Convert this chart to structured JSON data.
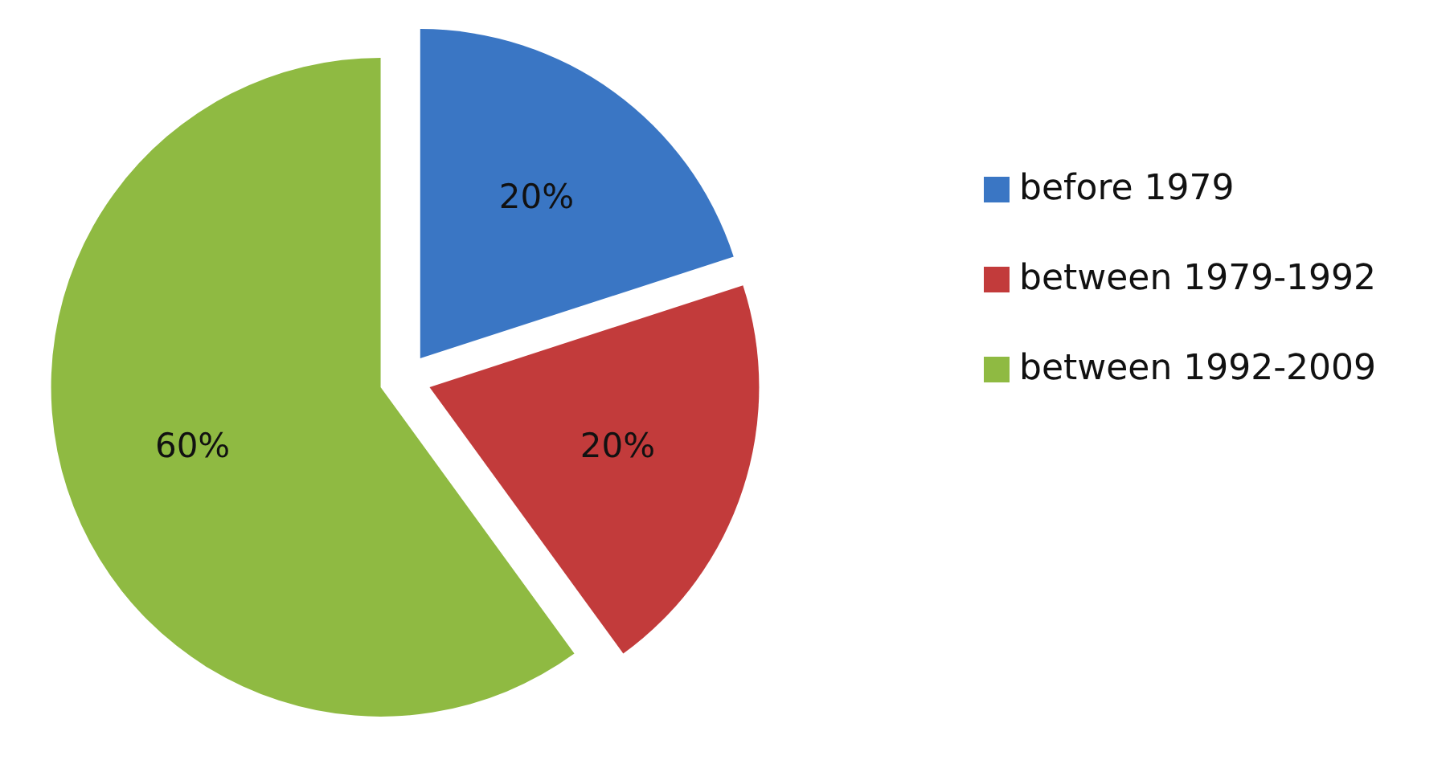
{
  "chart_data": {
    "type": "pie",
    "categories": [
      "before 1979",
      "between 1979-1992",
      "between 1992-2009"
    ],
    "values": [
      20,
      20,
      60
    ],
    "value_labels": [
      "20%",
      "20%",
      "60%"
    ],
    "colors": [
      "#3a76c4",
      "#c23b3b",
      "#8fba42"
    ],
    "legend": "right"
  }
}
